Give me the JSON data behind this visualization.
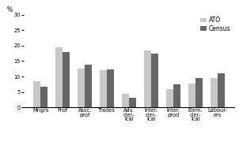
{
  "categories": [
    "Mngrs",
    "Prof",
    "Assc.\nprof",
    "Trades",
    "Adv.\ncler-\nical",
    "Inter.\ncler-\nical",
    "Inter.\nprod",
    "Elem.\ncler-\nical",
    "Labour-\ners"
  ],
  "ato_values": [
    8.5,
    19.5,
    12.5,
    12.0,
    4.5,
    18.5,
    5.8,
    7.8,
    9.5
  ],
  "census_values": [
    6.8,
    18.0,
    13.8,
    12.3,
    3.0,
    17.5,
    7.4,
    9.4,
    11.0
  ],
  "ato_color": "#c8c8c8",
  "census_color": "#666666",
  "ylabel": "%",
  "ylim": [
    0,
    30
  ],
  "yticks": [
    0,
    5,
    10,
    15,
    20,
    25,
    30
  ],
  "legend_labels": [
    "ATO",
    "Census"
  ],
  "bar_width": 0.32,
  "figsize": [
    3.02,
    1.89
  ],
  "dpi": 100,
  "tick_fontsize": 4.8,
  "legend_fontsize": 5.5,
  "ylabel_fontsize": 5.5
}
